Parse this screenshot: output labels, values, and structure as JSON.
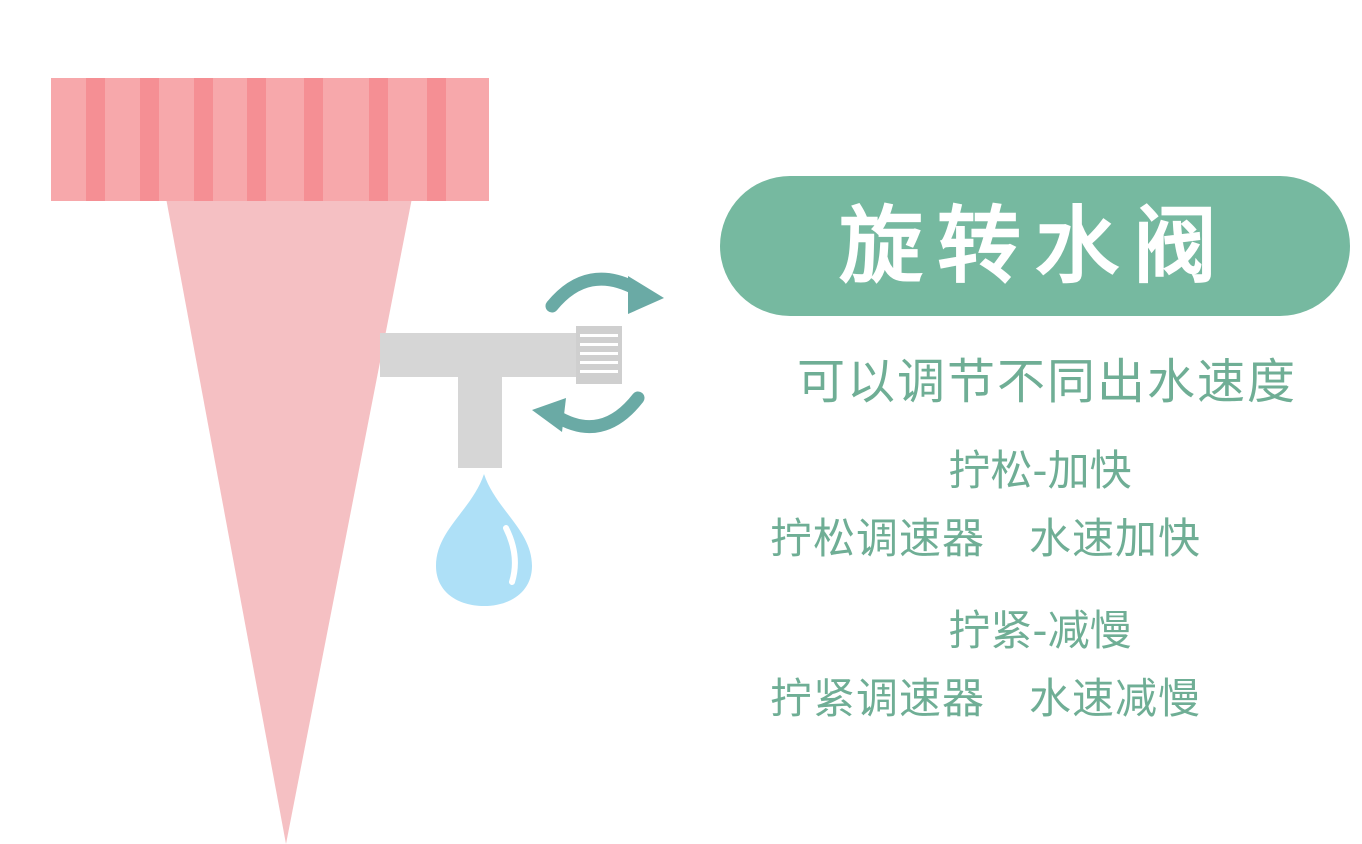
{
  "title": "旋转水阀",
  "subtitle": "可以调节不同出水速度",
  "loosen": {
    "heading": "拧松-加快",
    "action": "拧松调速器",
    "result": "水速加快"
  },
  "tighten": {
    "heading": "拧紧-减慢",
    "action": "拧紧调速器",
    "result": "水速减慢"
  },
  "colors": {
    "accent": "#76b9a0",
    "text": "#6fae95",
    "cap": "#f7a8ab",
    "cap_stripe": "#f58f94",
    "cone": "#f5c0c3",
    "faucet": "#d6d6d6",
    "arrow": "#6aaaa5",
    "drop": "#aee0f7"
  },
  "icons": [
    "rotate-arrows-icon",
    "water-drop-icon"
  ]
}
